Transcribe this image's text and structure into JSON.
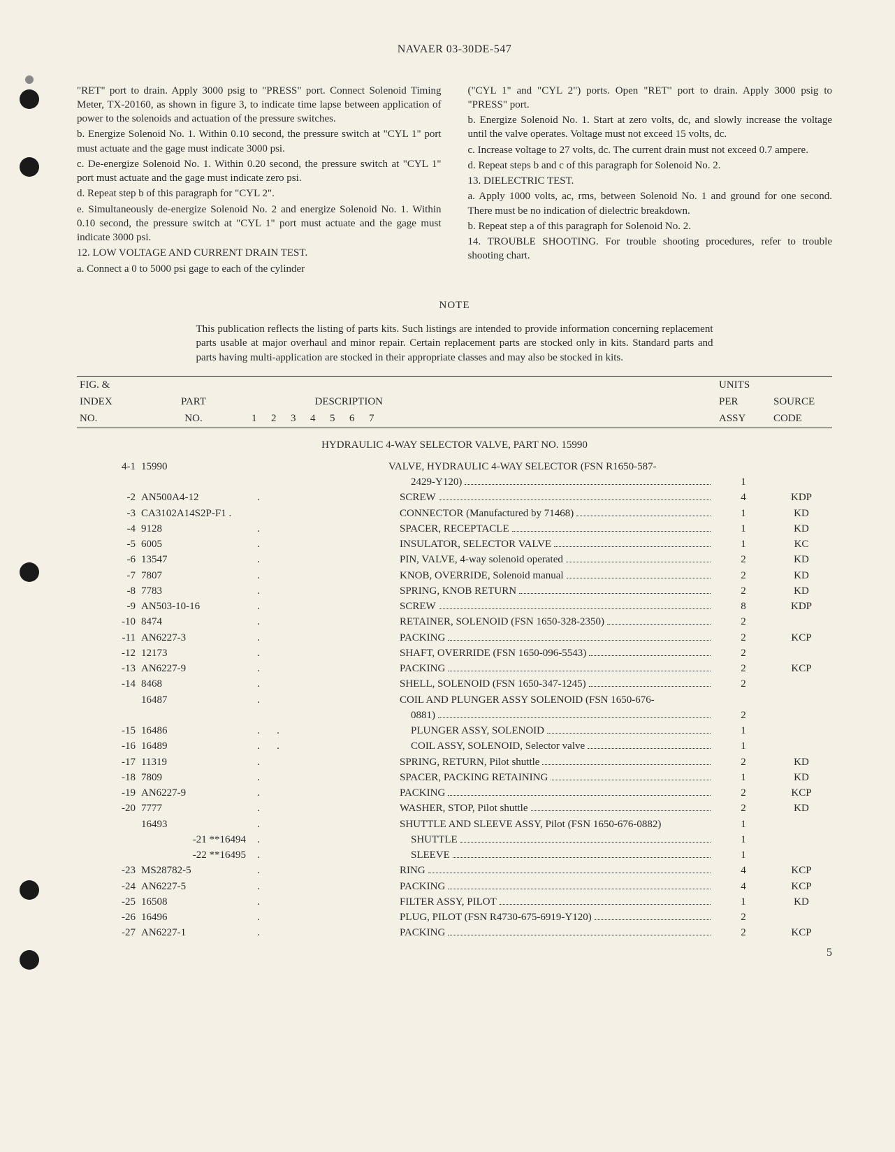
{
  "header": "NAVAER 03-30DE-547",
  "col_left": {
    "p1": "\"RET\" port to drain. Apply 3000 psig to \"PRESS\" port. Connect Solenoid Timing Meter, TX-20160, as shown in figure 3, to indicate time lapse between application of power to the solenoids and actuation of the pressure switches.",
    "p2": "b. Energize Solenoid No. 1. Within 0.10 second, the pressure switch at \"CYL 1\" port must actuate and the gage must indicate 3000 psi.",
    "p3": "c. De-energize Solenoid No. 1. Within 0.20 second, the pressure switch at \"CYL 1\" port must actuate and the gage must indicate zero psi.",
    "p4": "d. Repeat step b of this paragraph for \"CYL 2\".",
    "p5": "e. Simultaneously de-energize Solenoid No. 2 and energize Solenoid No. 1. Within 0.10 second, the pressure switch at \"CYL 1\" port must actuate and the gage must indicate 3000 psi.",
    "p6": "12. LOW VOLTAGE AND CURRENT DRAIN TEST.",
    "p7": "a. Connect a 0 to 5000 psi gage to each of the cylinder"
  },
  "col_right": {
    "p1": "(\"CYL 1\" and \"CYL 2\") ports. Open \"RET\" port to drain. Apply 3000 psig to \"PRESS\" port.",
    "p2": "b. Energize Solenoid No. 1. Start at zero volts, dc, and slowly increase the voltage until the valve operates. Voltage must not exceed 15 volts, dc.",
    "p3": "c. Increase voltage to 27 volts, dc. The current drain must not exceed 0.7 ampere.",
    "p4": "d. Repeat steps b and c of this paragraph for Solenoid No. 2.",
    "p5": "13. DIELECTRIC TEST.",
    "p6": "a. Apply 1000 volts, ac, rms, between Solenoid No. 1 and ground for one second. There must be no indication of dielectric breakdown.",
    "p7": "b. Repeat step a of this paragraph for Solenoid No. 2.",
    "p8": "14. TROUBLE SHOOTING. For trouble shooting procedures, refer to trouble shooting chart."
  },
  "note": {
    "title": "NOTE",
    "body": "This publication reflects the listing of parts kits. Such listings are intended to provide information concerning replacement parts usable at major overhaul and minor repair. Certain replacement parts are stocked only in kits. Standard parts and parts having multi-application are stocked in their appropriate classes and may also be stocked in kits."
  },
  "table": {
    "headers": {
      "fig1": "FIG. &",
      "fig2": "INDEX",
      "fig3": "NO.",
      "part1": "PART",
      "part2": "NO.",
      "desc": "DESCRIPTION",
      "desc_nums": [
        "1",
        "2",
        "3",
        "4",
        "5",
        "6",
        "7"
      ],
      "units1": "UNITS",
      "units2": "PER",
      "units3": "ASSY",
      "source1": "SOURCE",
      "source2": "CODE"
    },
    "section_title": "HYDRAULIC 4-WAY SELECTOR VALVE, PART NO. 15990",
    "rows": [
      {
        "fig": "4-1",
        "part": "15990",
        "ind": 0,
        "desc": "VALVE, HYDRAULIC 4-WAY SELECTOR (FSN R1650-587-",
        "units": "",
        "source": "",
        "nodots": true
      },
      {
        "fig": "",
        "part": "",
        "ind": 2,
        "desc": "2429-Y120)",
        "units": "1",
        "source": "",
        "dots": true
      },
      {
        "fig": "-2",
        "part": "AN500A4-12",
        "ind": 1,
        "desc": "SCREW",
        "units": "4",
        "source": "KDP",
        "dots": true,
        "dot": true
      },
      {
        "fig": "-3",
        "part": "CA3102A14S2P-F1 .",
        "ind": 1,
        "desc": "CONNECTOR (Manufactured by 71468)",
        "units": "1",
        "source": "KD",
        "dots": true
      },
      {
        "fig": "-4",
        "part": "9128",
        "ind": 1,
        "desc": "SPACER, RECEPTACLE",
        "units": "1",
        "source": "KD",
        "dots": true,
        "dot": true
      },
      {
        "fig": "-5",
        "part": "6005",
        "ind": 1,
        "desc": "INSULATOR, SELECTOR VALVE",
        "units": "1",
        "source": "KC",
        "dots": true,
        "dot": true
      },
      {
        "fig": "-6",
        "part": "13547",
        "ind": 1,
        "desc": "PIN, VALVE, 4-way solenoid operated",
        "units": "2",
        "source": "KD",
        "dots": true,
        "dot": true
      },
      {
        "fig": "-7",
        "part": "7807",
        "ind": 1,
        "desc": "KNOB, OVERRIDE, Solenoid manual",
        "units": "2",
        "source": "KD",
        "dots": true,
        "dot": true
      },
      {
        "fig": "-8",
        "part": "7783",
        "ind": 1,
        "desc": "SPRING, KNOB RETURN",
        "units": "2",
        "source": "KD",
        "dots": true,
        "dot": true
      },
      {
        "fig": "-9",
        "part": "AN503-10-16",
        "ind": 1,
        "desc": "SCREW",
        "units": "8",
        "source": "KDP",
        "dots": true,
        "dot": true
      },
      {
        "fig": "-10",
        "part": "8474",
        "ind": 1,
        "desc": "RETAINER, SOLENOID (FSN 1650-328-2350)",
        "units": "2",
        "source": "",
        "dots": true,
        "dot": true
      },
      {
        "fig": "-11",
        "part": "AN6227-3",
        "ind": 1,
        "desc": "PACKING",
        "units": "2",
        "source": "KCP",
        "dots": true,
        "dot": true
      },
      {
        "fig": "-12",
        "part": "12173",
        "ind": 1,
        "desc": "SHAFT, OVERRIDE (FSN 1650-096-5543)",
        "units": "2",
        "source": "",
        "dots": true,
        "dot": true
      },
      {
        "fig": "-13",
        "part": "AN6227-9",
        "ind": 1,
        "desc": "PACKING",
        "units": "2",
        "source": "KCP",
        "dots": true,
        "dot": true
      },
      {
        "fig": "-14",
        "part": "8468",
        "ind": 1,
        "desc": "SHELL, SOLENOID (FSN 1650-347-1245)",
        "units": "2",
        "source": "",
        "dots": true,
        "dot": true
      },
      {
        "fig": "",
        "part": "16487",
        "ind": 1,
        "desc": "COIL AND PLUNGER ASSY SOLENOID (FSN 1650-676-",
        "units": "",
        "source": "",
        "nodots": true,
        "dot": true
      },
      {
        "fig": "",
        "part": "",
        "ind": 2,
        "desc": "0881)",
        "units": "2",
        "source": "",
        "dots": true
      },
      {
        "fig": "-15",
        "part": "16486",
        "ind": 2,
        "desc": "PLUNGER ASSY, SOLENOID",
        "units": "1",
        "source": "",
        "dots": true,
        "dot": true,
        "dot2": true
      },
      {
        "fig": "-16",
        "part": "16489",
        "ind": 2,
        "desc": "COIL ASSY, SOLENOID, Selector valve",
        "units": "1",
        "source": "",
        "dots": true,
        "dot": true,
        "dot2": true
      },
      {
        "fig": "-17",
        "part": "11319",
        "ind": 1,
        "desc": "SPRING, RETURN, Pilot shuttle",
        "units": "2",
        "source": "KD",
        "dots": true,
        "dot": true
      },
      {
        "fig": "-18",
        "part": "7809",
        "ind": 1,
        "desc": "SPACER, PACKING RETAINING",
        "units": "1",
        "source": "KD",
        "dots": true,
        "dot": true
      },
      {
        "fig": "-19",
        "part": "AN6227-9",
        "ind": 1,
        "desc": "PACKING",
        "units": "2",
        "source": "KCP",
        "dots": true,
        "dot": true
      },
      {
        "fig": "-20",
        "part": "7777",
        "ind": 1,
        "desc": "WASHER, STOP, Pilot shuttle",
        "units": "2",
        "source": "KD",
        "dots": true,
        "dot": true
      },
      {
        "fig": "",
        "part": "16493",
        "ind": 1,
        "desc": "SHUTTLE AND SLEEVE ASSY, Pilot (FSN 1650-676-0882)",
        "units": "1",
        "source": "",
        "nodots": true,
        "dot": true
      },
      {
        "fig": "-21 **16494",
        "part": "",
        "ind": 2,
        "desc": "SHUTTLE",
        "units": "1",
        "source": "",
        "dots": true,
        "dot": true,
        "figonly": true
      },
      {
        "fig": "-22 **16495",
        "part": "",
        "ind": 2,
        "desc": "SLEEVE",
        "units": "1",
        "source": "",
        "dots": true,
        "dot": true,
        "figonly": true
      },
      {
        "fig": "-23",
        "part": "MS28782-5",
        "ind": 1,
        "desc": "RING",
        "units": "4",
        "source": "KCP",
        "dots": true,
        "dot": true
      },
      {
        "fig": "-24",
        "part": "AN6227-5",
        "ind": 1,
        "desc": "PACKING",
        "units": "4",
        "source": "KCP",
        "dots": true,
        "dot": true
      },
      {
        "fig": "-25",
        "part": "16508",
        "ind": 1,
        "desc": "FILTER ASSY, PILOT",
        "units": "1",
        "source": "KD",
        "dots": true,
        "dot": true
      },
      {
        "fig": "-26",
        "part": "16496",
        "ind": 1,
        "desc": "PLUG, PILOT (FSN R4730-675-6919-Y120)",
        "units": "2",
        "source": "",
        "dots": true,
        "dot": true
      },
      {
        "fig": "-27",
        "part": "AN6227-1",
        "ind": 1,
        "desc": "PACKING",
        "units": "2",
        "source": "KCP",
        "dots": true,
        "dot": true
      }
    ]
  },
  "page_number": "5",
  "colors": {
    "bg": "#f4f0e6",
    "text": "#2a2a2a",
    "rule": "#2a2a2a"
  }
}
